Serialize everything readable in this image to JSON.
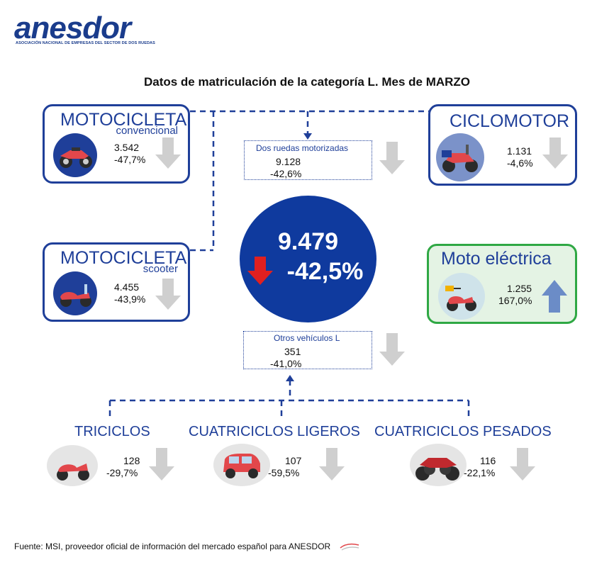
{
  "logo": {
    "name": "anesdor",
    "tagline": "ASOCIACIÓN NACIONAL DE EMPRESAS DEL SECTOR DE DOS RUEDAS"
  },
  "title": "Datos de matriculación de la categoría L. Mes de MARZO",
  "total": {
    "value": "9.479",
    "change": "-42,5%"
  },
  "two_wheels": {
    "label": "Dos ruedas motorizadas",
    "value": "9.128",
    "change": "-42,6%"
  },
  "other_l": {
    "label": "Otros vehículos L",
    "value": "351",
    "change": "-41,0%"
  },
  "cards": {
    "moto_conv": {
      "title": "MOTOCICLETA",
      "subtitle": "convencional",
      "value": "3.542",
      "change": "-47,7%"
    },
    "moto_scooter": {
      "title": "MOTOCICLETA",
      "subtitle": "scooter",
      "value": "4.455",
      "change": "-43,9%"
    },
    "ciclomotor": {
      "title": "CICLOMOTOR",
      "value": "1.131",
      "change": "-4,6%"
    },
    "electrica": {
      "title": "Moto eléctrica",
      "value": "1.255",
      "change": "167,0%"
    }
  },
  "categories": {
    "triciclos": {
      "title": "TRICICLOS",
      "value": "128",
      "change": "-29,7%"
    },
    "cuatri_ligeros": {
      "title": "CUATRICICLOS LIGEROS",
      "value": "107",
      "change": "-59,5%"
    },
    "cuatri_pesados": {
      "title": "CUATRICICLOS PESADOS",
      "value": "116",
      "change": "-22,1%"
    }
  },
  "footer": "Fuente: MSI, proveedor oficial de información del mercado español para ANESDOR",
  "colors": {
    "brand": "#1f3f99",
    "circle": "#0f3a9e",
    "green": "#2fa844",
    "down_arrow": "#cfcfcf",
    "up_arrow": "#6b8cc7",
    "red_arrow": "#e02020"
  }
}
